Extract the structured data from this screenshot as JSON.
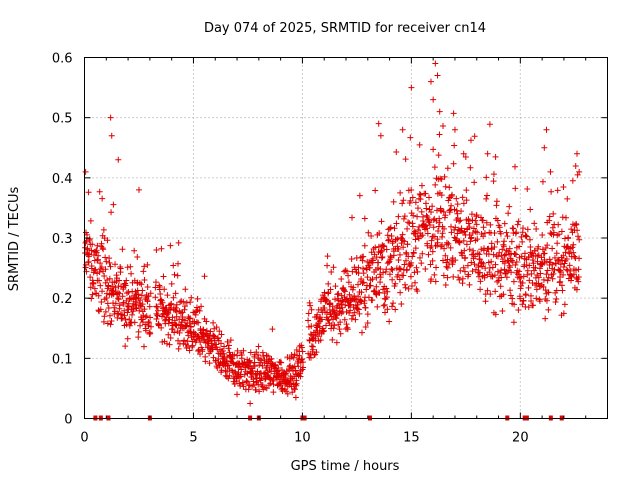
{
  "chart_data": {
    "type": "scatter",
    "title": "Day 074 of 2025, SRMTID for receiver cn14",
    "xlabel": "GPS time / hours",
    "ylabel": "SRMTID / TECUs",
    "xlim": [
      0,
      24
    ],
    "ylim": [
      0,
      0.6
    ],
    "xticks": [
      0,
      5,
      10,
      15,
      20
    ],
    "yticks": [
      0,
      0.1,
      0.2,
      0.3,
      0.4,
      0.5,
      0.6
    ],
    "xtick_labels": [
      "0",
      "5",
      "10",
      "15",
      "20"
    ],
    "ytick_labels": [
      "0",
      "0.1",
      "0.2",
      "0.3",
      "0.4",
      "0.5",
      "0.6"
    ],
    "grid": true,
    "legend": "none",
    "marker": "+",
    "color": "#e00000",
    "series_name": "SRMTID",
    "trend": [
      [
        0.0,
        0.27
      ],
      [
        0.5,
        0.25
      ],
      [
        1.0,
        0.22
      ],
      [
        1.5,
        0.2
      ],
      [
        2.0,
        0.19
      ],
      [
        2.5,
        0.19
      ],
      [
        3.0,
        0.18
      ],
      [
        3.5,
        0.18
      ],
      [
        4.0,
        0.17
      ],
      [
        4.5,
        0.16
      ],
      [
        5.0,
        0.15
      ],
      [
        5.5,
        0.13
      ],
      [
        6.0,
        0.11
      ],
      [
        6.5,
        0.09
      ],
      [
        7.0,
        0.08
      ],
      [
        7.5,
        0.08
      ],
      [
        8.0,
        0.075
      ],
      [
        8.5,
        0.075
      ],
      [
        9.0,
        0.07
      ],
      [
        9.5,
        0.07
      ],
      [
        10.0,
        0.09
      ],
      [
        10.5,
        0.14
      ],
      [
        11.0,
        0.17
      ],
      [
        11.5,
        0.18
      ],
      [
        12.0,
        0.19
      ],
      [
        12.5,
        0.21
      ],
      [
        13.0,
        0.23
      ],
      [
        13.5,
        0.26
      ],
      [
        14.0,
        0.25
      ],
      [
        14.5,
        0.27
      ],
      [
        15.0,
        0.29
      ],
      [
        15.5,
        0.31
      ],
      [
        16.0,
        0.33
      ],
      [
        16.5,
        0.32
      ],
      [
        17.0,
        0.3
      ],
      [
        17.5,
        0.29
      ],
      [
        18.0,
        0.28
      ],
      [
        18.5,
        0.27
      ],
      [
        19.0,
        0.26
      ],
      [
        19.5,
        0.25
      ],
      [
        20.0,
        0.25
      ],
      [
        20.5,
        0.25
      ],
      [
        21.0,
        0.24
      ],
      [
        21.5,
        0.25
      ],
      [
        22.0,
        0.26
      ],
      [
        22.5,
        0.27
      ]
    ],
    "spread": [
      [
        0.0,
        0.06
      ],
      [
        2.0,
        0.05
      ],
      [
        5.0,
        0.04
      ],
      [
        6.0,
        0.03
      ],
      [
        10.0,
        0.03
      ],
      [
        12.0,
        0.05
      ],
      [
        13.5,
        0.07
      ],
      [
        15.0,
        0.09
      ],
      [
        16.5,
        0.1
      ],
      [
        18.0,
        0.08
      ],
      [
        20.0,
        0.07
      ],
      [
        22.5,
        0.06
      ]
    ],
    "peaks": [
      {
        "x": 0.05,
        "y": 0.41
      },
      {
        "x": 1.2,
        "y": 0.5
      },
      {
        "x": 1.25,
        "y": 0.47
      },
      {
        "x": 1.55,
        "y": 0.43
      },
      {
        "x": 2.5,
        "y": 0.38
      },
      {
        "x": 3.3,
        "y": 0.28
      },
      {
        "x": 13.5,
        "y": 0.49
      },
      {
        "x": 13.6,
        "y": 0.47
      },
      {
        "x": 14.6,
        "y": 0.48
      },
      {
        "x": 15.0,
        "y": 0.55
      },
      {
        "x": 15.9,
        "y": 0.56
      },
      {
        "x": 16.1,
        "y": 0.59
      },
      {
        "x": 16.2,
        "y": 0.57
      },
      {
        "x": 16.0,
        "y": 0.53
      },
      {
        "x": 16.3,
        "y": 0.51
      },
      {
        "x": 17.0,
        "y": 0.48
      },
      {
        "x": 17.4,
        "y": 0.44
      },
      {
        "x": 18.5,
        "y": 0.44
      },
      {
        "x": 21.2,
        "y": 0.48
      },
      {
        "x": 21.1,
        "y": 0.45
      },
      {
        "x": 22.6,
        "y": 0.44
      },
      {
        "x": 22.7,
        "y": 0.41
      },
      {
        "x": 7.6,
        "y": 0.025
      },
      {
        "x": 7.0,
        "y": 0.04
      },
      {
        "x": 9.7,
        "y": 0.035
      }
    ],
    "gaps": [
      [
        3.05,
        3.25
      ],
      [
        10.05,
        10.25
      ]
    ],
    "baseline_markers": [
      0.5,
      0.75,
      1.1,
      3.0,
      7.6,
      8.0,
      10.0,
      10.1,
      13.1,
      19.4,
      20.2,
      20.3,
      21.4,
      21.9
    ]
  }
}
